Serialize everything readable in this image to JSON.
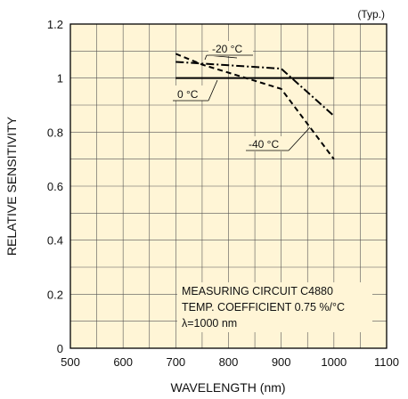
{
  "chart_data": {
    "type": "line",
    "typ_label": "(Typ.)",
    "xlabel": "WAVELENGTH (nm)",
    "ylabel": "RELATIVE SENSITIVITY",
    "xlim": [
      500,
      1100
    ],
    "ylim": [
      0,
      1.2
    ],
    "xticks": [
      500,
      600,
      700,
      800,
      900,
      1000,
      1100
    ],
    "yticks": [
      0,
      0.2,
      0.4,
      0.6,
      0.8,
      1,
      1.2
    ],
    "minor_grid": {
      "x_step": 50,
      "y_step": 0.1
    },
    "background": "#fff5d6",
    "series": [
      {
        "name": "0 °C",
        "style": "solid",
        "x": [
          700,
          1000
        ],
        "y": [
          1.0,
          1.0
        ]
      },
      {
        "name": "-20 °C",
        "style": "dash-dot",
        "x": [
          700,
          900,
          1000
        ],
        "y": [
          1.06,
          1.035,
          0.86
        ]
      },
      {
        "name": "-40 °C",
        "style": "dashed",
        "x": [
          700,
          750,
          850,
          900,
          1000
        ],
        "y": [
          1.09,
          1.05,
          0.99,
          0.96,
          0.7
        ]
      }
    ],
    "note_lines": [
      "MEASURING CIRCUIT C4880",
      "TEMP. COEFFICIENT 0.75 %/°C",
      "λ=1000 nm"
    ]
  }
}
